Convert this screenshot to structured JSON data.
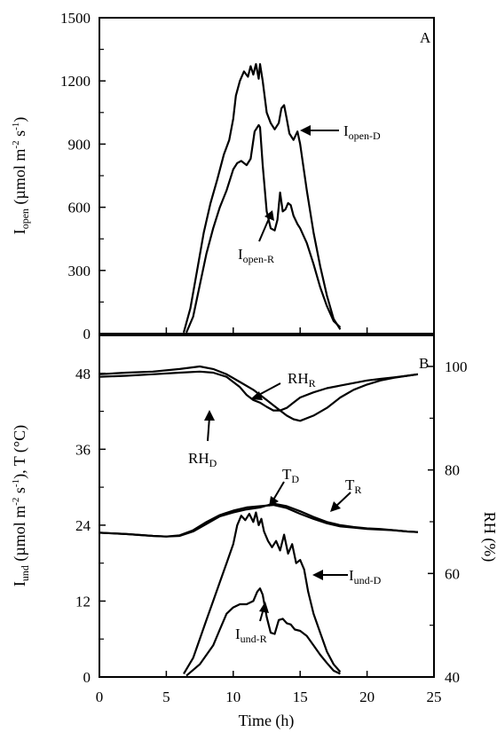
{
  "chart_data": [
    {
      "type": "line",
      "panel": "A",
      "ylabel": {
        "main": "I",
        "sub": "open",
        "rest": " (µmol m",
        "sup1": "-2",
        "mid": " s",
        "sup2": "-1",
        "end": ")"
      },
      "xlim": [
        0,
        25
      ],
      "ylim": [
        0,
        1500
      ],
      "yticks": [
        0,
        300,
        600,
        900,
        1200,
        1500
      ],
      "grid": false,
      "series": [
        {
          "name": "Iopen-D",
          "annotation": {
            "main": "I",
            "sub": "open-D"
          },
          "x": [
            6.3,
            6.8,
            7.3,
            7.8,
            8.3,
            8.8,
            9.3,
            9.7,
            10.0,
            10.2,
            10.5,
            10.8,
            11.1,
            11.3,
            11.5,
            11.7,
            11.9,
            12.0,
            12.2,
            12.5,
            12.8,
            13.1,
            13.4,
            13.6,
            13.8,
            14.0,
            14.2,
            14.5,
            14.8,
            15.0,
            15.5,
            16.0,
            16.5,
            17.0,
            17.5,
            18.0
          ],
          "y": [
            5,
            120,
            300,
            480,
            620,
            730,
            850,
            920,
            1020,
            1130,
            1200,
            1245,
            1220,
            1270,
            1230,
            1280,
            1210,
            1280,
            1200,
            1050,
            1000,
            970,
            1000,
            1070,
            1085,
            1020,
            950,
            920,
            960,
            900,
            680,
            480,
            320,
            180,
            70,
            20
          ]
        },
        {
          "name": "Iopen-R",
          "annotation": {
            "main": "I",
            "sub": "open-R"
          },
          "x": [
            6.5,
            7.0,
            7.5,
            8.0,
            8.5,
            9.0,
            9.5,
            10.0,
            10.3,
            10.6,
            11.0,
            11.3,
            11.6,
            11.9,
            12.0,
            12.2,
            12.5,
            12.8,
            13.1,
            13.3,
            13.5,
            13.7,
            13.9,
            14.1,
            14.3,
            14.5,
            14.8,
            15.0,
            15.5,
            16.0,
            16.5,
            17.0,
            17.5,
            18.0
          ],
          "y": [
            5,
            80,
            230,
            380,
            500,
            600,
            680,
            780,
            810,
            820,
            800,
            830,
            960,
            990,
            980,
            800,
            580,
            500,
            490,
            540,
            670,
            580,
            590,
            620,
            610,
            560,
            520,
            500,
            430,
            330,
            220,
            130,
            60,
            30
          ]
        }
      ]
    },
    {
      "type": "line",
      "panel": "B",
      "xlabel": "Time (h)",
      "xlim": [
        0,
        25
      ],
      "xticks": [
        0,
        5,
        10,
        15,
        20,
        25
      ],
      "ylabel": {
        "main": "I",
        "sub": "und",
        "rest": " (µmol m",
        "sup1": "-2",
        "mid": " s",
        "sup2": "-1",
        "end": "), T (°C)"
      },
      "ylim": [
        0,
        54
      ],
      "yticks": [
        0,
        12,
        24,
        36,
        48
      ],
      "y2label": "RH (%)",
      "y2lim": [
        40,
        106
      ],
      "y2ticks": [
        40,
        60,
        80,
        100
      ],
      "grid": false,
      "series": [
        {
          "name": "RHD",
          "axis": "right",
          "annotation": {
            "main": "RH",
            "sub": "D"
          },
          "x": [
            0,
            2,
            4,
            6,
            7.5,
            8.5,
            9.5,
            10.5,
            11.5,
            12.5,
            13.0,
            13.5,
            14.0,
            14.5,
            15.0,
            16.0,
            17.0,
            18.0,
            19.0,
            20.0,
            21.0,
            22.0,
            23.0,
            23.8
          ],
          "y": [
            98.5,
            98.8,
            99.0,
            99.5,
            100.0,
            99.5,
            98.5,
            97.0,
            95.5,
            93.5,
            92.5,
            91.5,
            90.5,
            89.8,
            89.5,
            90.5,
            92.0,
            94.0,
            95.5,
            96.5,
            97.3,
            97.8,
            98.2,
            98.5
          ]
        },
        {
          "name": "RHR",
          "axis": "right",
          "annotation": {
            "main": "RH",
            "sub": "R"
          },
          "x": [
            0,
            2,
            4,
            6,
            7.5,
            8.5,
            9.5,
            10.5,
            11.0,
            11.5,
            12.0,
            12.5,
            13.0,
            13.5,
            14.0,
            14.5,
            15.0,
            16.0,
            17.0,
            18.0,
            19.0,
            20.0,
            21.0,
            22.0,
            23.0,
            23.8
          ],
          "y": [
            98.0,
            98.2,
            98.5,
            98.8,
            99.0,
            98.8,
            98.0,
            96.0,
            94.5,
            93.5,
            93.0,
            92.2,
            91.5,
            91.5,
            92.0,
            93.0,
            94.0,
            95.0,
            95.8,
            96.3,
            96.8,
            97.3,
            97.6,
            97.9,
            98.2,
            98.5
          ]
        },
        {
          "name": "TD",
          "axis": "left",
          "annotation": {
            "main": "T",
            "sub": "D"
          },
          "x": [
            0,
            2,
            4,
            5,
            6,
            7,
            8,
            9,
            10,
            11,
            12,
            13,
            14,
            15,
            16,
            17,
            18,
            19,
            20,
            21,
            22,
            23,
            23.8
          ],
          "y": [
            22.8,
            22.6,
            22.3,
            22.2,
            22.4,
            23.2,
            24.5,
            25.6,
            26.3,
            26.8,
            27.0,
            27.2,
            26.7,
            25.8,
            25.0,
            24.3,
            23.8,
            23.6,
            23.4,
            23.3,
            23.2,
            23.0,
            22.9
          ]
        },
        {
          "name": "TR",
          "axis": "left",
          "annotation": {
            "main": "T",
            "sub": "R"
          },
          "x": [
            0,
            2,
            4,
            5,
            6,
            7,
            8,
            9,
            10,
            11,
            12,
            13,
            14,
            15,
            16,
            17,
            18,
            19,
            20,
            21,
            22,
            23,
            23.8
          ],
          "y": [
            22.8,
            22.6,
            22.3,
            22.2,
            22.3,
            23.0,
            24.2,
            25.4,
            26.0,
            26.5,
            26.8,
            27.4,
            27.0,
            26.2,
            25.3,
            24.5,
            24.0,
            23.7,
            23.5,
            23.4,
            23.2,
            23.0,
            22.9
          ]
        },
        {
          "name": "Iund-D",
          "axis": "left",
          "annotation": {
            "main": "I",
            "sub": "und-D"
          },
          "x": [
            6.3,
            7.0,
            7.5,
            8.0,
            8.5,
            9.0,
            9.5,
            10.0,
            10.3,
            10.6,
            10.9,
            11.2,
            11.5,
            11.7,
            11.9,
            12.1,
            12.3,
            12.6,
            12.9,
            13.2,
            13.5,
            13.8,
            14.1,
            14.4,
            14.7,
            15.0,
            15.3,
            15.6,
            16.0,
            16.5,
            17.0,
            17.5,
            18.0
          ],
          "y": [
            0.5,
            3,
            6,
            9,
            12,
            15,
            18,
            21,
            24,
            25.5,
            24.8,
            25.8,
            24.5,
            26,
            24,
            25,
            23,
            21.5,
            20.5,
            21.5,
            20,
            22.5,
            19.5,
            21,
            18,
            18.5,
            17,
            13.5,
            10,
            7,
            4,
            2,
            0.8
          ]
        },
        {
          "name": "Iund-R",
          "axis": "left",
          "annotation": {
            "main": "I",
            "sub": "und-R"
          },
          "x": [
            6.5,
            7.5,
            8.5,
            9.0,
            9.5,
            10.0,
            10.5,
            11.0,
            11.5,
            11.8,
            12.0,
            12.2,
            12.5,
            12.8,
            13.1,
            13.4,
            13.7,
            14.0,
            14.3,
            14.6,
            15.0,
            15.5,
            16.0,
            16.5,
            17.0,
            17.5,
            18.0
          ],
          "y": [
            0.2,
            2,
            5,
            7.5,
            10,
            11,
            11.5,
            11.5,
            12,
            13.5,
            14,
            13,
            9.5,
            7,
            6.8,
            9,
            9.2,
            8.5,
            8.3,
            7.5,
            7.3,
            6.5,
            5,
            3.5,
            2.2,
            1,
            0.5
          ]
        }
      ]
    }
  ]
}
